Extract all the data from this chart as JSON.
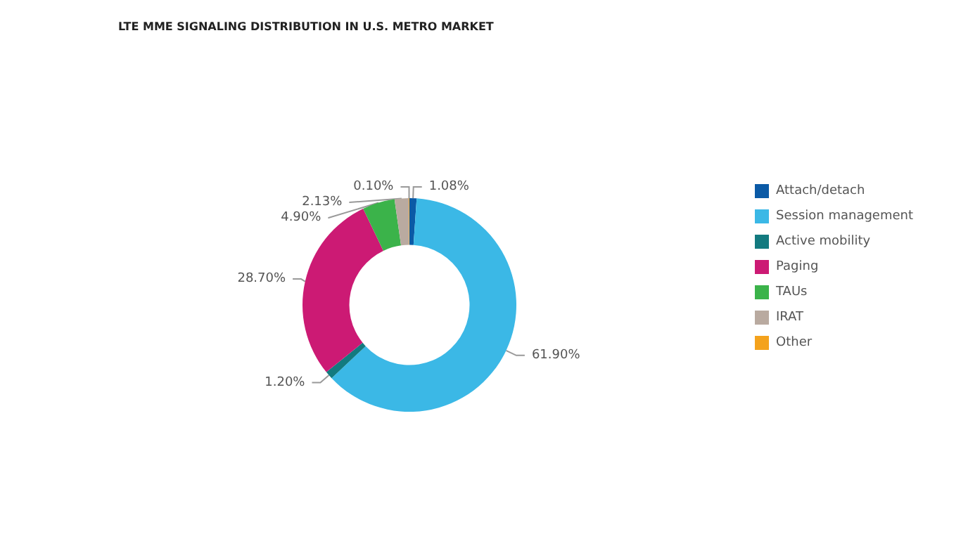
{
  "chart_data": {
    "type": "donut",
    "title": "LTE MME SIGNALING DISTRIBUTION IN U.S. METRO MARKET",
    "categories": [
      "Attach/detach",
      "Session management",
      "Active mobility",
      "Paging",
      "TAUs",
      "IRAT",
      "Other"
    ],
    "values": [
      1.08,
      61.9,
      1.2,
      28.7,
      4.9,
      2.13,
      0.1
    ],
    "value_labels": [
      "1.08%",
      "61.90%",
      "1.20%",
      "28.70%",
      "4.90%",
      "2.13%",
      "0.10%"
    ],
    "colors": [
      "#0b5aa6",
      "#3bb8e6",
      "#137a7f",
      "#cc1a74",
      "#3bb34a",
      "#b9aaa0",
      "#f4a21c"
    ],
    "legend": "right"
  }
}
